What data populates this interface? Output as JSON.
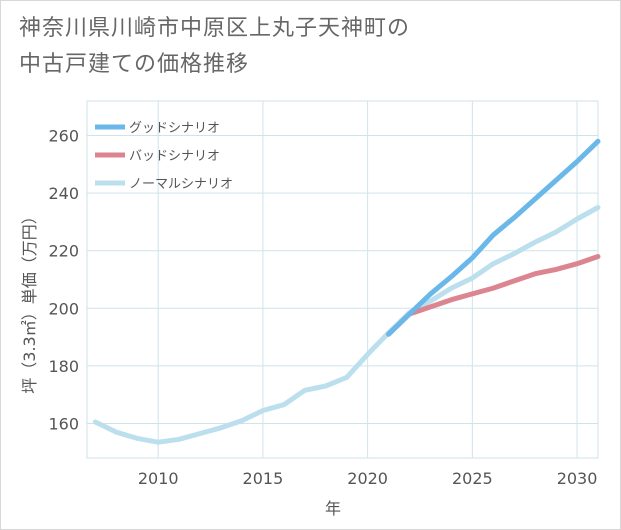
{
  "title_lines": [
    "神奈川県川崎市中原区上丸子天神町の",
    "中古戸建ての価格推移"
  ],
  "chart_data": {
    "type": "line",
    "xlabel": "年",
    "ylabel": "坪（3.3㎡）単価（万円）",
    "xlim": [
      2006.6,
      2031
    ],
    "ylim": [
      148,
      272
    ],
    "xticks": [
      2010,
      2015,
      2020,
      2025,
      2030
    ],
    "yticks": [
      160,
      180,
      200,
      220,
      240,
      260
    ],
    "grid": true,
    "legend_position": "top-left",
    "series": [
      {
        "name": "グッドシナリオ",
        "color": "#6ab8ea",
        "x": [
          2021,
          2022,
          2023,
          2024,
          2025,
          2026,
          2027,
          2028,
          2029,
          2030,
          2031
        ],
        "y": [
          191,
          198,
          205,
          211,
          217.5,
          225.5,
          231.5,
          238,
          244.5,
          251,
          258
        ]
      },
      {
        "name": "バッドシナリオ",
        "color": "#dc8590",
        "x": [
          2021,
          2022,
          2023,
          2024,
          2025,
          2026,
          2027,
          2028,
          2029,
          2030,
          2031
        ],
        "y": [
          191,
          198,
          200.5,
          203,
          205,
          207,
          209.5,
          212,
          213.5,
          215.5,
          218
        ]
      },
      {
        "name": "ノーマルシナリオ",
        "color": "#bcdfee",
        "x": [
          2007,
          2008,
          2009,
          2010,
          2011,
          2012,
          2013,
          2014,
          2015,
          2016,
          2017,
          2018,
          2019,
          2020,
          2021,
          2022,
          2023,
          2024,
          2025,
          2026,
          2027,
          2028,
          2029,
          2030,
          2031
        ],
        "y": [
          160.5,
          157,
          154.8,
          153.5,
          154.5,
          156.5,
          158.5,
          161,
          164.5,
          166.5,
          171.5,
          173,
          176,
          184,
          191.5,
          198.5,
          202.5,
          207,
          210.5,
          215.5,
          219,
          223,
          226.5,
          231,
          235
        ]
      }
    ]
  }
}
